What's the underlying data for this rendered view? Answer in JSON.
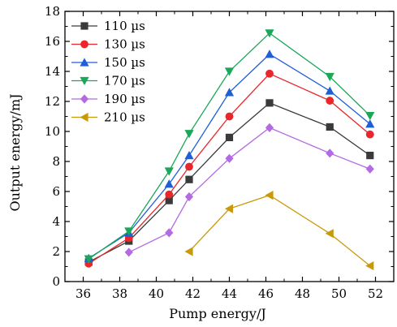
{
  "chart_data": {
    "type": "line",
    "xlabel": "Pump energy/J",
    "ylabel": "Output energy/mJ",
    "xlim": [
      35,
      53
    ],
    "ylim": [
      0,
      18
    ],
    "x_ticks": [
      36,
      38,
      40,
      42,
      44,
      46,
      48,
      50,
      52
    ],
    "y_ticks": [
      0,
      2,
      4,
      6,
      8,
      10,
      12,
      14,
      16,
      18
    ],
    "grid": false,
    "legend_position": "top-left",
    "series": [
      {
        "name": "110 µs",
        "color": "#3a3a3a",
        "marker": "square",
        "x": [
          36.3,
          38.5,
          40.7,
          41.8,
          44.0,
          46.2,
          49.5,
          51.7
        ],
        "y": [
          1.3,
          2.7,
          5.4,
          6.8,
          9.6,
          11.9,
          10.3,
          8.4
        ]
      },
      {
        "name": "130 µs",
        "color": "#e8262b",
        "marker": "circle",
        "x": [
          36.3,
          38.5,
          40.7,
          41.8,
          44.0,
          46.2,
          49.5,
          51.7
        ],
        "y": [
          1.2,
          2.9,
          5.8,
          7.65,
          11.0,
          13.85,
          12.05,
          9.8
        ]
      },
      {
        "name": "150 µs",
        "color": "#1f5fd6",
        "marker": "triangle-up",
        "x": [
          36.3,
          38.5,
          40.7,
          41.8,
          44.0,
          46.2,
          49.5,
          51.7
        ],
        "y": [
          1.55,
          3.25,
          6.5,
          8.4,
          12.6,
          15.15,
          12.7,
          10.5
        ]
      },
      {
        "name": "170 µs",
        "color": "#1aa75a",
        "marker": "triangle-down",
        "x": [
          36.3,
          38.5,
          40.7,
          41.8,
          44.0,
          46.2,
          49.5,
          51.7
        ],
        "y": [
          1.5,
          3.35,
          7.35,
          9.85,
          14.0,
          16.55,
          13.65,
          11.05
        ]
      },
      {
        "name": "190 µs",
        "color": "#b36ae2",
        "marker": "diamond",
        "x": [
          38.5,
          40.7,
          41.8,
          44.0,
          46.2,
          49.5,
          51.7
        ],
        "y": [
          1.95,
          3.25,
          5.65,
          8.2,
          10.25,
          8.55,
          7.5
        ]
      },
      {
        "name": "210 µs",
        "color": "#c89a0a",
        "marker": "triangle-left",
        "x": [
          41.8,
          44.0,
          46.2,
          49.5,
          51.7
        ],
        "y": [
          2.0,
          4.85,
          5.75,
          3.2,
          1.05
        ]
      }
    ]
  }
}
